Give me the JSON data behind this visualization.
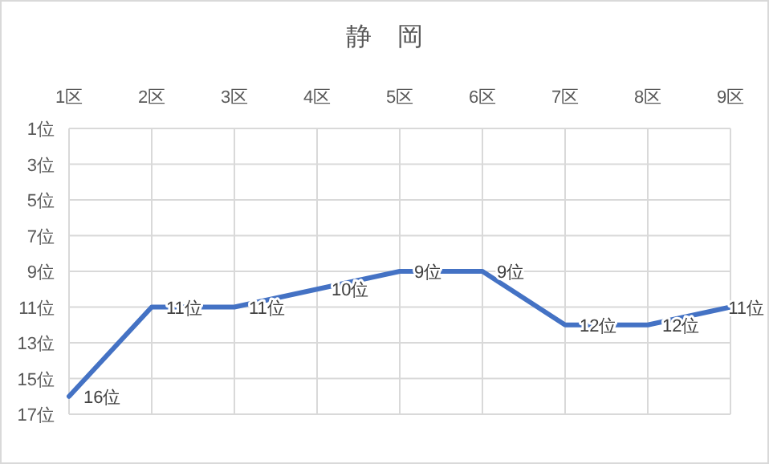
{
  "chart_data": {
    "type": "line",
    "title": "静　岡",
    "categories": [
      "1区",
      "2区",
      "3区",
      "4区",
      "5区",
      "6区",
      "7区",
      "8区",
      "9区"
    ],
    "series": [
      {
        "color": "#4472c4",
        "values": [
          16,
          11,
          11,
          10,
          9,
          9,
          12,
          12,
          11
        ],
        "value_labels": [
          "16位",
          "11位",
          "11位",
          "10位",
          "9位",
          "9位",
          "12位",
          "12位",
          "11位"
        ]
      }
    ],
    "ylim": [
      17,
      1
    ],
    "yticks": [
      {
        "value": 1,
        "label": "1位"
      },
      {
        "value": 3,
        "label": "3位"
      },
      {
        "value": 5,
        "label": "5位"
      },
      {
        "value": 7,
        "label": "7位"
      },
      {
        "value": 9,
        "label": "9位"
      },
      {
        "value": 11,
        "label": "11位"
      },
      {
        "value": 13,
        "label": "13位"
      },
      {
        "value": 15,
        "label": "15位"
      },
      {
        "value": 17,
        "label": "17位"
      }
    ],
    "grid": true
  }
}
